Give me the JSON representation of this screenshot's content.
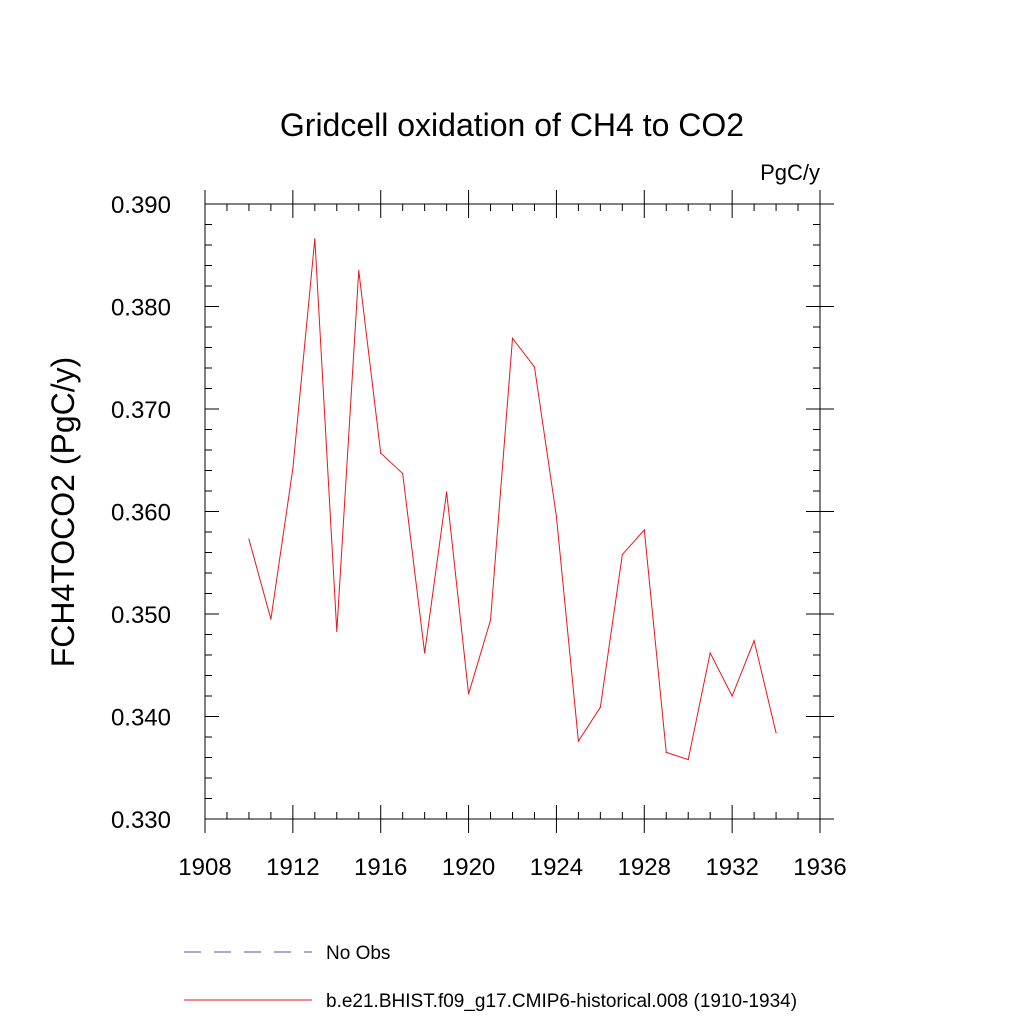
{
  "chart_data": {
    "type": "line",
    "title": "Gridcell oxidation of CH4 to CO2",
    "units_label": "PgC/y",
    "xlabel": "",
    "ylabel": "FCH4TOCO2  (PgC/y)",
    "xlim": [
      1908,
      1936
    ],
    "ylim": [
      0.33,
      0.39
    ],
    "x_ticks": [
      1908,
      1912,
      1916,
      1920,
      1924,
      1928,
      1932,
      1936
    ],
    "x_tick_labels": [
      "1908",
      "1912",
      "1916",
      "1920",
      "1924",
      "1928",
      "1932",
      "1936"
    ],
    "y_ticks": [
      0.33,
      0.34,
      0.35,
      0.36,
      0.37,
      0.38,
      0.39
    ],
    "y_tick_labels": [
      "0.330",
      "0.340",
      "0.350",
      "0.360",
      "0.370",
      "0.380",
      "0.390"
    ],
    "x_minor_step": 1,
    "y_minor_step": 0.002,
    "grid": false,
    "series": [
      {
        "name": "b.e21.BHIST.f09_g17.CMIP6-historical.008 (1910-1934)",
        "color": "#e8161c",
        "style": "solid",
        "x": [
          1910,
          1911,
          1912,
          1913,
          1914,
          1915,
          1916,
          1917,
          1918,
          1919,
          1920,
          1921,
          1922,
          1923,
          1924,
          1925,
          1926,
          1927,
          1928,
          1929,
          1930,
          1931,
          1932,
          1933,
          1934
        ],
        "values": [
          0.3573,
          0.3495,
          0.3642,
          0.3866,
          0.3483,
          0.3835,
          0.3657,
          0.3637,
          0.3462,
          0.3619,
          0.3422,
          0.3494,
          0.3769,
          0.3741,
          0.3595,
          0.3376,
          0.3409,
          0.3558,
          0.3582,
          0.3365,
          0.3358,
          0.3462,
          0.342,
          0.3474,
          0.3384
        ]
      }
    ],
    "legend": [
      {
        "label": "No Obs",
        "color": "#5a52a8",
        "style": "dashed"
      },
      {
        "label": "b.e21.BHIST.f09_g17.CMIP6-historical.008 (1910-1934)",
        "color": "#e8161c",
        "style": "solid"
      }
    ],
    "legend_position": "bottom"
  }
}
